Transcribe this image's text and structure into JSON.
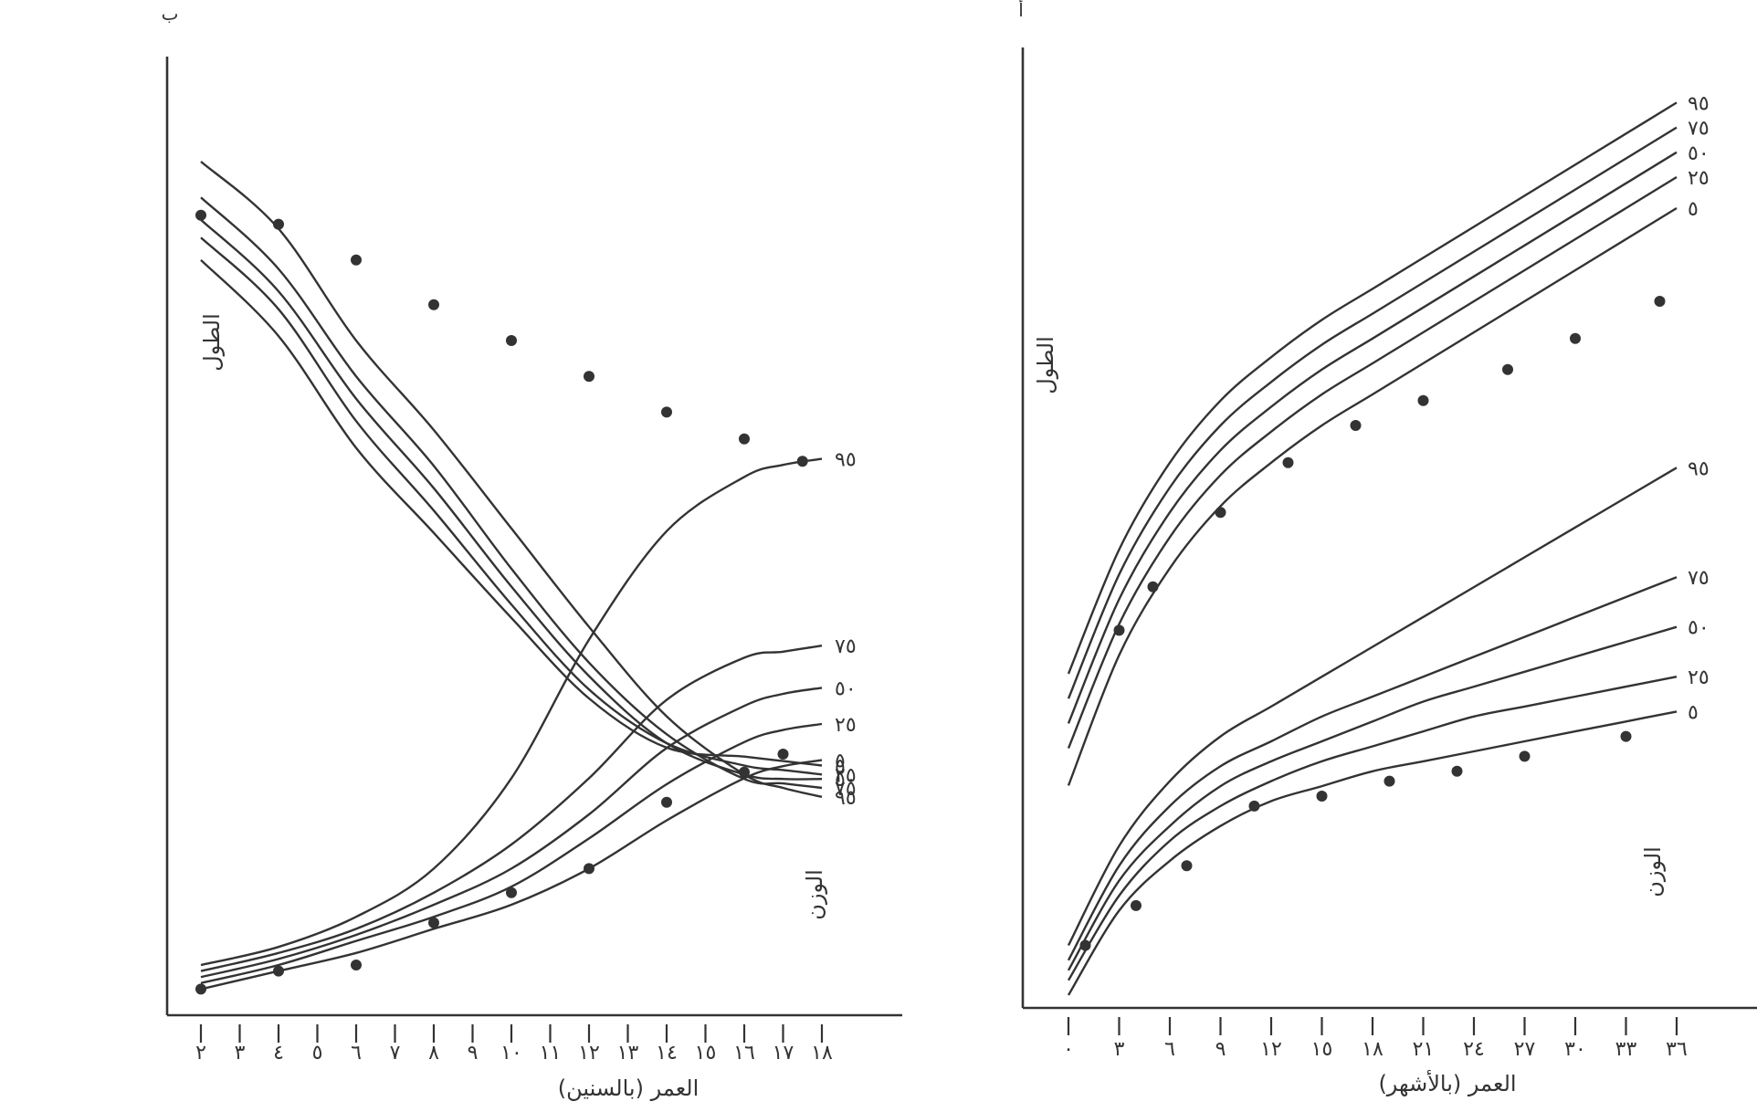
{
  "chart_data": [
    {
      "type": "line",
      "panel_label": "ب",
      "xlabel": "العمر (بالسنين)",
      "x_ticks": [
        "٢",
        "٣",
        "٤",
        "٥",
        "٦",
        "٧",
        "٨",
        "٩",
        "١٠",
        "١١",
        "١٢",
        "١٣",
        "١٤",
        "١٥",
        "١٦",
        "١٧",
        "١٨"
      ],
      "x_range": [
        2,
        18
      ],
      "groups": [
        {
          "label": "الطول",
          "series": [
            {
              "name": "٩٥",
              "x": [
                2,
                4,
                6,
                8,
                10,
                12,
                14,
                16,
                17,
                18
              ],
              "y": [
                0.7,
                0.55,
                0.3,
                0.1,
                -0.12,
                -0.34,
                -0.54,
                -0.67,
                -0.7,
                -0.72
              ]
            },
            {
              "name": "٧٥",
              "x": [
                2,
                4,
                6,
                8,
                10,
                12,
                14,
                16,
                17,
                18
              ],
              "y": [
                0.62,
                0.46,
                0.22,
                0.02,
                -0.21,
                -0.42,
                -0.58,
                -0.68,
                -0.69,
                -0.7
              ]
            },
            {
              "name": "٥٠",
              "x": [
                2,
                4,
                6,
                8,
                10,
                12,
                14,
                16,
                17,
                18
              ],
              "y": [
                0.57,
                0.41,
                0.17,
                -0.03,
                -0.25,
                -0.45,
                -0.6,
                -0.67,
                -0.68,
                -0.68
              ]
            },
            {
              "name": "٢٥",
              "x": [
                2,
                4,
                6,
                8,
                10,
                12,
                14,
                16,
                17,
                18
              ],
              "y": [
                0.53,
                0.37,
                0.12,
                -0.08,
                -0.29,
                -0.48,
                -0.6,
                -0.65,
                -0.66,
                -0.67
              ]
            },
            {
              "name": "٥",
              "x": [
                2,
                4,
                6,
                8,
                10,
                12,
                14,
                16,
                17,
                18
              ],
              "y": [
                0.48,
                0.31,
                0.06,
                -0.13,
                -0.32,
                -0.5,
                -0.61,
                -0.63,
                -0.64,
                -0.65
              ]
            }
          ],
          "points": {
            "x": [
              2,
              4,
              6,
              8,
              10,
              12,
              14,
              16,
              17.5
            ],
            "y": [
              0.58,
              0.56,
              0.48,
              0.38,
              0.3,
              0.22,
              0.14,
              0.08,
              0.03
            ]
          }
        },
        {
          "label": "الوزن",
          "series": [
            {
              "name": "٩٥",
              "x": [
                2,
                4,
                6,
                8,
                10,
                12,
                14,
                16,
                17,
                18
              ],
              "y": [
                5,
                8,
                13,
                21,
                36,
                59,
                77,
                86,
                88,
                89
              ]
            },
            {
              "name": "٧٥",
              "x": [
                2,
                4,
                6,
                8,
                10,
                12,
                14,
                16,
                17,
                18
              ],
              "y": [
                4,
                7,
                11,
                17,
                25,
                36,
                49,
                56,
                57,
                58
              ]
            },
            {
              "name": "٥٠",
              "x": [
                2,
                4,
                6,
                8,
                10,
                12,
                14,
                16,
                17,
                18
              ],
              "y": [
                3,
                6,
                10,
                15,
                21,
                30,
                41,
                48,
                50,
                51
              ]
            },
            {
              "name": "٢٥",
              "x": [
                2,
                4,
                6,
                8,
                10,
                12,
                14,
                16,
                17,
                18
              ],
              "y": [
                2,
                5,
                9,
                13,
                18,
                26,
                35,
                42,
                44,
                45
              ]
            },
            {
              "name": "٥",
              "x": [
                2,
                4,
                6,
                8,
                10,
                12,
                14,
                16,
                17,
                18
              ],
              "y": [
                1,
                4,
                7,
                11,
                15,
                21,
                29,
                36,
                38,
                39
              ]
            }
          ],
          "points": {
            "x": [
              2,
              4,
              6,
              8,
              10,
              12,
              14,
              16,
              17
            ],
            "y": [
              1,
              4,
              5,
              12,
              17,
              21,
              32,
              37,
              40
            ]
          }
        }
      ]
    },
    {
      "type": "line",
      "panel_label": "أ",
      "xlabel": "العمر (بالأشهر)",
      "x_ticks": [
        "٠",
        "٣",
        "٦",
        "٩",
        "١٢",
        "١٥",
        "١٨",
        "٢١",
        "٢٤",
        "٢٧",
        "٣٠",
        "٣٣",
        "٣٦"
      ],
      "x_range": [
        0,
        36
      ],
      "groups": [
        {
          "label": "الطول",
          "series": [
            {
              "name": "٩٥",
              "x": [
                0,
                3,
                6,
                9,
                12,
                15,
                18,
                21,
                24,
                27,
                30,
                33,
                36
              ],
              "y": [
                0.4,
                0.6,
                0.74,
                0.84,
                0.91,
                0.97,
                1.02,
                1.07,
                1.12,
                1.17,
                1.22,
                1.27,
                1.32
              ]
            },
            {
              "name": "٧٥",
              "x": [
                0,
                3,
                6,
                9,
                12,
                15,
                18,
                21,
                24,
                27,
                30,
                33,
                36
              ],
              "y": [
                0.36,
                0.56,
                0.7,
                0.8,
                0.87,
                0.93,
                0.98,
                1.03,
                1.08,
                1.13,
                1.18,
                1.23,
                1.28
              ]
            },
            {
              "name": "٥٠",
              "x": [
                0,
                3,
                6,
                9,
                12,
                15,
                18,
                21,
                24,
                27,
                30,
                33,
                36
              ],
              "y": [
                0.32,
                0.52,
                0.66,
                0.76,
                0.83,
                0.89,
                0.94,
                0.99,
                1.04,
                1.09,
                1.14,
                1.19,
                1.24
              ]
            },
            {
              "name": "٢٥",
              "x": [
                0,
                3,
                6,
                9,
                12,
                15,
                18,
                21,
                24,
                27,
                30,
                33,
                36
              ],
              "y": [
                0.28,
                0.48,
                0.62,
                0.72,
                0.79,
                0.85,
                0.9,
                0.95,
                1.0,
                1.05,
                1.1,
                1.15,
                1.2
              ]
            },
            {
              "name": "٥",
              "x": [
                0,
                3,
                6,
                9,
                12,
                15,
                18,
                21,
                24,
                27,
                30,
                33,
                36
              ],
              "y": [
                0.22,
                0.43,
                0.57,
                0.67,
                0.74,
                0.8,
                0.85,
                0.9,
                0.95,
                1.0,
                1.05,
                1.1,
                1.15
              ]
            }
          ],
          "points": {
            "x": [
              3,
              5,
              9,
              13,
              17,
              21,
              26,
              30,
              35
            ],
            "y": [
              0.47,
              0.54,
              0.66,
              0.74,
              0.8,
              0.84,
              0.89,
              0.94,
              1.0
            ]
          }
        },
        {
          "label": "الوزن",
          "series": [
            {
              "name": "٩٥",
              "x": [
                0,
                3,
                6,
                9,
                12,
                15,
                18,
                21,
                24,
                27,
                30,
                33,
                36
              ],
              "y": [
                0.1,
                0.3,
                0.43,
                0.52,
                0.58,
                0.64,
                0.7,
                0.76,
                0.82,
                0.88,
                0.94,
                1.0,
                1.06
              ]
            },
            {
              "name": "٧٥",
              "x": [
                0,
                3,
                6,
                9,
                12,
                15,
                18,
                21,
                24,
                27,
                30,
                33,
                36
              ],
              "y": [
                0.07,
                0.26,
                0.38,
                0.46,
                0.51,
                0.56,
                0.6,
                0.64,
                0.68,
                0.72,
                0.76,
                0.8,
                0.84
              ]
            },
            {
              "name": "٥٠",
              "x": [
                0,
                3,
                6,
                9,
                12,
                15,
                18,
                21,
                24,
                27,
                30,
                33,
                36
              ],
              "y": [
                0.05,
                0.23,
                0.34,
                0.42,
                0.47,
                0.51,
                0.55,
                0.59,
                0.62,
                0.65,
                0.68,
                0.71,
                0.74
              ]
            },
            {
              "name": "٢٥",
              "x": [
                0,
                3,
                6,
                9,
                12,
                15,
                18,
                21,
                24,
                27,
                30,
                33,
                36
              ],
              "y": [
                0.03,
                0.2,
                0.31,
                0.38,
                0.43,
                0.47,
                0.5,
                0.53,
                0.56,
                0.58,
                0.6,
                0.62,
                0.64
              ]
            },
            {
              "name": "٥",
              "x": [
                0,
                3,
                6,
                9,
                12,
                15,
                18,
                21,
                24,
                27,
                30,
                33,
                36
              ],
              "y": [
                0.0,
                0.17,
                0.27,
                0.34,
                0.39,
                0.42,
                0.45,
                0.47,
                0.49,
                0.51,
                0.53,
                0.55,
                0.57
              ]
            }
          ],
          "points": {
            "x": [
              1,
              4,
              7,
              11,
              15,
              19,
              23,
              27,
              33
            ],
            "y": [
              0.1,
              0.18,
              0.26,
              0.38,
              0.4,
              0.43,
              0.45,
              0.48,
              0.52
            ]
          }
        }
      ]
    }
  ]
}
